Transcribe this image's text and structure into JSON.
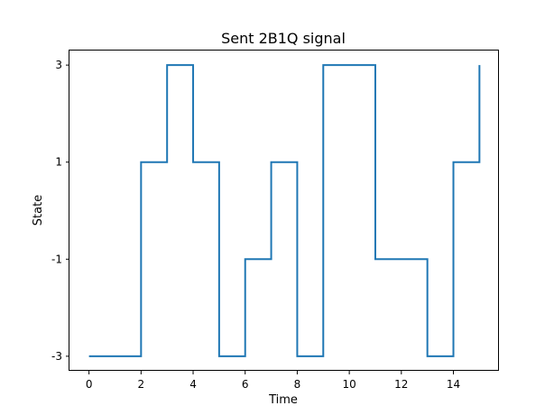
{
  "chart_data": {
    "type": "line",
    "drawstyle": "steps-post",
    "title": "Sent 2B1Q signal",
    "xlabel": "Time",
    "ylabel": "State",
    "xlim": [
      -0.75,
      15.75
    ],
    "ylim": [
      -3.3,
      3.3
    ],
    "xticks": [
      0,
      2,
      4,
      6,
      8,
      10,
      12,
      14
    ],
    "xtick_labels": [
      "0",
      "2",
      "4",
      "6",
      "8",
      "10",
      "12",
      "14"
    ],
    "yticks": [
      -3,
      -1,
      1,
      3
    ],
    "ytick_labels": [
      "-3",
      "-1",
      "1",
      "3"
    ],
    "grid": false,
    "legend": "none",
    "series": [
      {
        "color": "#1f77b4",
        "x": [
          0,
          1,
          2,
          3,
          4,
          5,
          6,
          7,
          8,
          9,
          10,
          11,
          12,
          13,
          14,
          15
        ],
        "y": [
          -3,
          -3,
          1,
          3,
          1,
          -3,
          -1,
          1,
          -3,
          3,
          3,
          -1,
          -1,
          -3,
          1,
          3
        ]
      }
    ]
  }
}
